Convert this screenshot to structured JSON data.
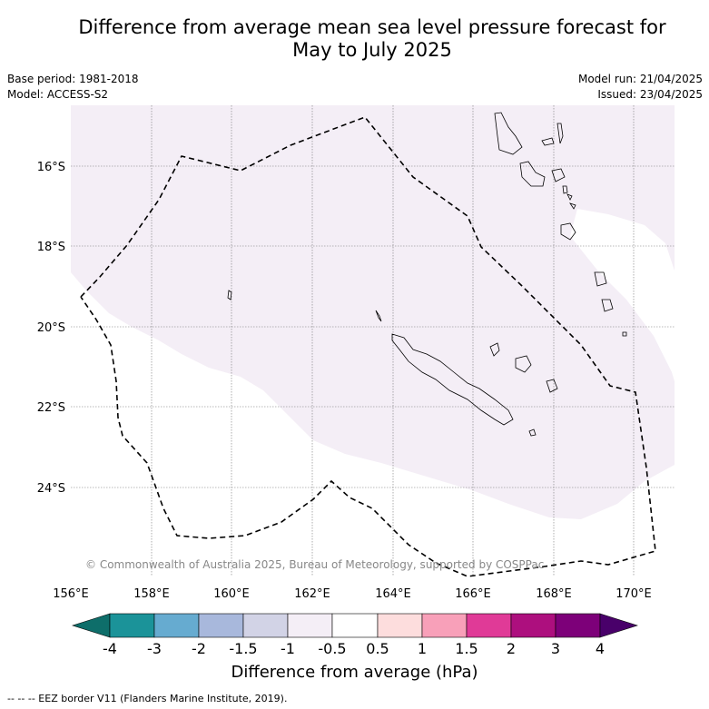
{
  "title": {
    "line1": "Difference from average mean sea level pressure forecast for",
    "line2": "May to July 2025"
  },
  "meta_left": {
    "base_period": "Base period: 1981-2018",
    "model": "Model: ACCESS-S2"
  },
  "meta_right": {
    "model_run": "Model run: 21/04/2025",
    "issued": "Issued: 23/04/2025"
  },
  "map": {
    "lat_labels": [
      "16°S",
      "18°S",
      "20°S",
      "22°S",
      "24°S"
    ],
    "lon_labels": [
      "156°E",
      "158°E",
      "160°E",
      "162°E",
      "164°E",
      "166°E",
      "168°E",
      "170°E"
    ],
    "copyright": "© Commonwealth of Australia 2025, Bureau of Meteorology, supported by COSPPac",
    "anomaly_fill_color": "#f4eef6"
  },
  "colorbar": {
    "title": "Difference from average (hPa)",
    "tick_labels": [
      "-4",
      "-3",
      "-2",
      "-1.5",
      "-1",
      "-0.5",
      "0.5",
      "1",
      "1.5",
      "2",
      "3",
      "4"
    ],
    "colors": [
      "#0e6e6a",
      "#1b9399",
      "#66abd0",
      "#a8b8dc",
      "#d2d3e6",
      "#f4eef6",
      "#ffffff",
      "#fddddd",
      "#f8a0b9",
      "#e03a97",
      "#ad0f7e",
      "#7d0079",
      "#49006a"
    ]
  },
  "footer": "-- -- -- EEZ border V11 (Flanders Marine Institute, 2019)."
}
